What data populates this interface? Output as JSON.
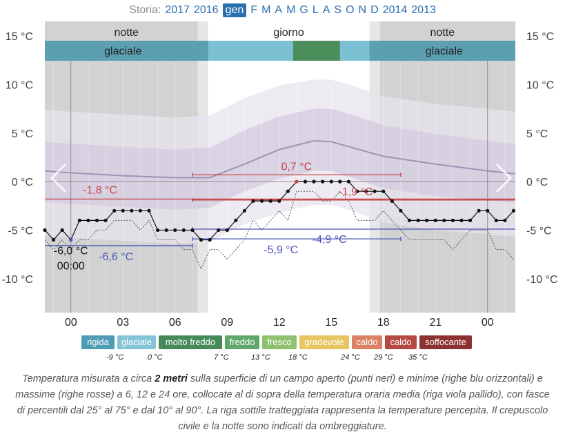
{
  "nav": {
    "label": "Storia:",
    "items": [
      "2017",
      "2016",
      "gen",
      "F",
      "M",
      "A",
      "M",
      "G",
      "L",
      "A",
      "S",
      "O",
      "N",
      "D",
      "2014",
      "2013"
    ],
    "selected_index": 2
  },
  "bands": {
    "periods": [
      {
        "label": "notte"
      },
      {
        "label": "giorno"
      },
      {
        "label": "notte"
      }
    ],
    "categories": [
      {
        "label": "glaciale"
      },
      {
        "label": "glaciale"
      }
    ]
  },
  "chart_data": {
    "type": "line",
    "x_ticks": [
      "00",
      "03",
      "06",
      "09",
      "12",
      "15",
      "18",
      "21",
      "00"
    ],
    "x_range_hours": [
      -1.5,
      25.6
    ],
    "y_ticks": [
      "15 °C",
      "10 °C",
      "5 °C",
      "0 °C",
      "-5 °C",
      "-10 °C"
    ],
    "y_range": [
      -13.5,
      16.5
    ],
    "night_intervals_hours": [
      [
        -1.5,
        7.3
      ],
      [
        17.8,
        25.6
      ]
    ],
    "twilight_intervals_hours": [
      [
        7.3,
        7.9
      ],
      [
        17.2,
        17.8
      ]
    ],
    "observed_temperature": {
      "hours": [
        -1.5,
        -1,
        -0.5,
        0,
        0.5,
        1,
        1.5,
        2,
        2.5,
        3,
        3.5,
        4,
        4.5,
        5,
        5.5,
        6,
        6.5,
        7,
        7.5,
        8,
        8.5,
        9,
        9.5,
        10,
        10.5,
        11,
        11.5,
        12,
        12.5,
        13,
        13.5,
        14,
        14.5,
        15,
        15.5,
        16,
        16.5,
        17,
        17.5,
        18,
        18.5,
        19,
        19.5,
        20,
        20.5,
        21,
        21.5,
        22,
        22.5,
        23,
        23.5,
        24,
        24.5,
        25,
        25.5
      ],
      "values": [
        -5,
        -6,
        -5,
        -6,
        -4,
        -4,
        -4,
        -4,
        -3,
        -3,
        -3,
        -3,
        -3,
        -5,
        -5,
        -5,
        -5,
        -5,
        -6,
        -6,
        -5,
        -5,
        -4,
        -3,
        -2,
        -2,
        -2,
        -2,
        -1,
        0,
        0,
        0,
        0,
        0,
        0,
        0,
        -1,
        -1,
        -1,
        -1,
        -2,
        -3,
        -4,
        -4,
        -4,
        -4,
        -4,
        -4,
        -4,
        -4,
        -3,
        -3,
        -4,
        -4,
        -3
      ]
    },
    "perceived_temperature": {
      "hours": [
        -1.5,
        -1,
        -0.5,
        0,
        0.5,
        1,
        1.5,
        2,
        2.5,
        3,
        3.5,
        4,
        4.5,
        5,
        5.5,
        6,
        6.5,
        7,
        7.5,
        8,
        8.5,
        9,
        9.5,
        10,
        10.5,
        11,
        11.5,
        12,
        12.5,
        13,
        13.5,
        14,
        14.5,
        15,
        15.5,
        16,
        16.5,
        17,
        17.5,
        18,
        18.5,
        19,
        19.5,
        20,
        20.5,
        21,
        21.5,
        22,
        22.5,
        23,
        23.5,
        24,
        24.5,
        25,
        25.5
      ],
      "values": [
        -6,
        -7,
        -6,
        -7,
        -6,
        -6,
        -5,
        -5,
        -4,
        -4,
        -4,
        -5,
        -4,
        -6,
        -6,
        -6,
        -7,
        -7,
        -9,
        -7,
        -7,
        -8,
        -7,
        -6,
        -4,
        -5,
        -4,
        -3,
        -4,
        -1,
        -1,
        -1,
        -2,
        -2,
        -1,
        -2,
        -4,
        -4,
        -4,
        -3,
        -4,
        -5,
        -6,
        -6,
        -6,
        -6,
        -6,
        -7,
        -6,
        -5,
        -5,
        -5,
        -7,
        -7,
        -8
      ]
    },
    "mean_temperature": {
      "hours": [
        -1.5,
        0,
        3,
        6,
        8,
        10,
        12,
        14,
        15,
        16,
        18,
        21,
        24,
        25.6
      ],
      "values": [
        1.1,
        0.9,
        0.6,
        0.4,
        0.4,
        1.8,
        3.3,
        4.2,
        4.1,
        3.6,
        2.6,
        1.8,
        1.1,
        0.8
      ]
    },
    "percentile_band_10_90": {
      "hours": [
        -1.5,
        0,
        3,
        6,
        8,
        10,
        12,
        14,
        15,
        16,
        18,
        21,
        24,
        25.6
      ],
      "upper": [
        7.4,
        7.2,
        6.9,
        6.6,
        6.8,
        8.6,
        9.9,
        10.5,
        10.5,
        10,
        8.8,
        8,
        7.5,
        7.2
      ],
      "lower": [
        -5.6,
        -5.8,
        -6.1,
        -6.4,
        -6.2,
        -4.4,
        -3.2,
        -2.4,
        -2.4,
        -2.9,
        -4.2,
        -5,
        -5.4,
        -5.7
      ]
    },
    "percentile_band_25_75": {
      "hours": [
        -1.5,
        0,
        3,
        6,
        8,
        10,
        12,
        14,
        15,
        16,
        18,
        21,
        24,
        25.6
      ],
      "upper": [
        4.1,
        3.9,
        3.6,
        3.3,
        3.5,
        5.3,
        6.7,
        7.5,
        7.5,
        7,
        5.8,
        4.9,
        4.2,
        3.9
      ],
      "lower": [
        -2.1,
        -2.3,
        -2.6,
        -2.9,
        -2.7,
        -1,
        0.3,
        1.1,
        1.1,
        0.5,
        -0.7,
        -1.5,
        -1.9,
        -2.2
      ]
    },
    "max_lines": [
      {
        "label": "-1,8 °C",
        "value": -1.8,
        "x_from_hours": -1.5,
        "x_to_hours": 25.6
      },
      {
        "label": "0,7 °C",
        "value": 0.7,
        "x_from_hours": 7,
        "x_to_hours": 19
      },
      {
        "label": "-1,9 °C",
        "value": -1.9,
        "x_from_hours": 7,
        "x_to_hours": 25.6
      }
    ],
    "min_lines": [
      {
        "label": "-6,6 °C",
        "value": -6.6,
        "x_from_hours": -1.5,
        "x_to_hours": 7
      },
      {
        "label": "-5,9 °C",
        "value": -5.9,
        "x_from_hours": 7,
        "x_to_hours": 19
      },
      {
        "label": "-4,9 °C",
        "value": -4.9,
        "x_from_hours": 7,
        "x_to_hours": 25.6
      }
    ],
    "min_marker": {
      "hours": 0,
      "value": -6,
      "label_temp": "-6,0 °C",
      "label_time": "00:00"
    },
    "max_marker": {
      "hours": 13,
      "value": 0
    }
  },
  "legend": [
    {
      "label": "rigida",
      "color": "#4e9bb5",
      "threshold": ""
    },
    {
      "label": "glaciale",
      "color": "#85c4d6",
      "threshold": "-9 °C"
    },
    {
      "label": "molto freddo",
      "color": "#468a5a",
      "threshold": "0 °C"
    },
    {
      "label": "freddo",
      "color": "#5ea86a",
      "threshold": "7 °C"
    },
    {
      "label": "fresco",
      "color": "#8fc26e",
      "threshold": "13 °C"
    },
    {
      "label": "gradevole",
      "color": "#e8c560",
      "threshold": "18 °C"
    },
    {
      "label": "caldo",
      "color": "#da8166",
      "threshold": "24 °C"
    },
    {
      "label": "caldo",
      "color": "#b54a45",
      "threshold": "29 °C"
    },
    {
      "label": "soffocante",
      "color": "#8c3232",
      "threshold": "35 °C"
    }
  ],
  "caption": {
    "p1": "Temperatura misurata a circa ",
    "b1": "2 metri",
    "p2": " sulla superficie di un campo aperto (punti neri) e minime (righe blu orizzontali) e massime (righe rosse) a 6, 12 e 24 ore, collocate al di sopra della temperatura oraria media (riga viola pallido), con fasce di percentili dal 25° al 75° e dal 10° al 90°. La riga sottile tratteggiata rappresenta la temperature percepita. Il crepuscolo civile e la notte sono indicati da ombreggiature."
  },
  "colors": {
    "night": "#d2d2d2",
    "twilight": "#e6e6e6",
    "outer_band": "#e8e3ee",
    "inner_band": "#d3cbdf",
    "mean_line": "#9f93b5",
    "max_line": "#c64545",
    "min_line": "#4a55b8",
    "band_glaciale": "#6eb3c9",
    "band_molto_freddo": "#4d8f5c",
    "band_glaciale_night": "#5b9fb0"
  }
}
